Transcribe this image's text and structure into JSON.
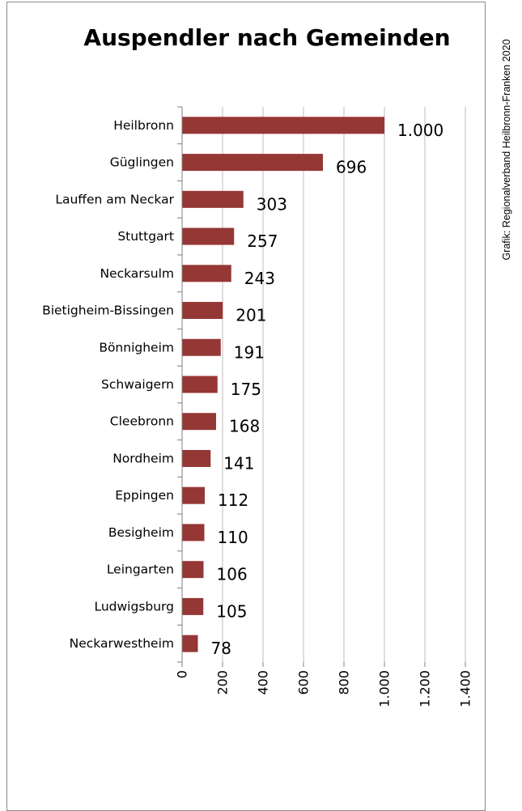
{
  "chart_data": {
    "type": "bar",
    "orientation": "horizontal",
    "title": "Auspendler nach Gemeinden",
    "source": "Grafik: Regionalverband Heilbronn-Franken 2020",
    "xlabel": "",
    "ylabel": "",
    "categories": [
      "Heilbronn",
      "Güglingen",
      "Lauffen am Neckar",
      "Stuttgart",
      "Neckarsulm",
      "Bietigheim-Bissingen",
      "Bönnigheim",
      "Schwaigern",
      "Cleebronn",
      "Nordheim",
      "Eppingen",
      "Besigheim",
      "Leingarten",
      "Ludwigsburg",
      "Neckarwestheim"
    ],
    "values": [
      1000,
      696,
      303,
      257,
      243,
      201,
      191,
      175,
      168,
      141,
      112,
      110,
      106,
      105,
      78
    ],
    "value_labels": [
      "1.000",
      "696",
      "303",
      "257",
      "243",
      "201",
      "191",
      "175",
      "168",
      "141",
      "112",
      "110",
      "106",
      "105",
      "78"
    ],
    "xlim": [
      0,
      1400
    ],
    "ticks": [
      0,
      200,
      400,
      600,
      800,
      1000,
      1200,
      1400
    ],
    "tick_labels": [
      "0",
      "200",
      "400",
      "600",
      "800",
      "1.000",
      "1.200",
      "1.400"
    ],
    "grid": true,
    "legend": "none",
    "bar_color": "#953735"
  }
}
